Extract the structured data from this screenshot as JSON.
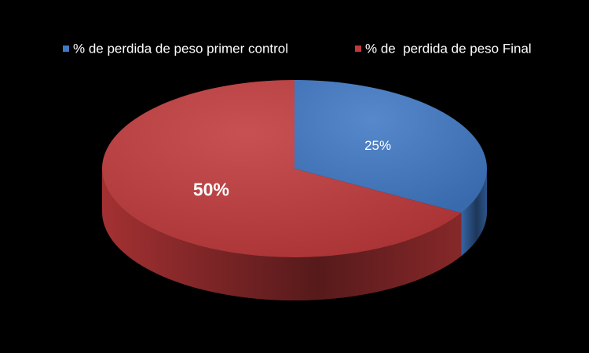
{
  "chart_data": {
    "type": "pie",
    "categories": [
      "% de perdida de peso primer control",
      "% de  perdida de peso Final"
    ],
    "values": [
      25,
      50
    ],
    "value_labels": [
      "25%",
      "50%"
    ],
    "colors": [
      "#3f78c4",
      "#c0393b"
    ],
    "legend": "top"
  }
}
